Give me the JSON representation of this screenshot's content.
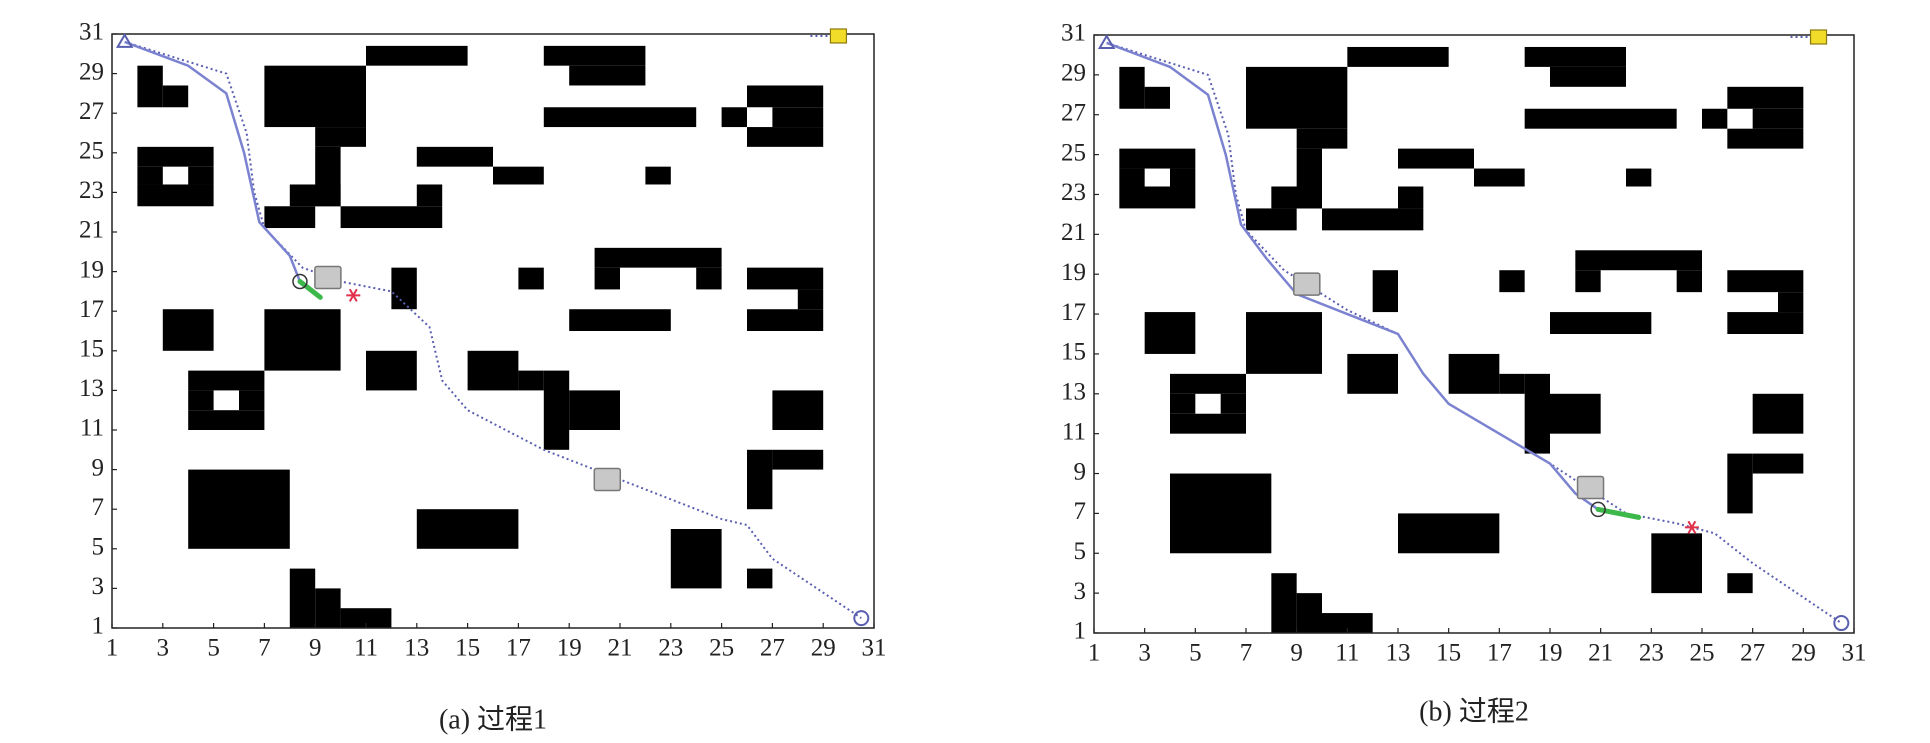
{
  "map": {
    "obstacles": [
      [
        11,
        29.4,
        15,
        30.4
      ],
      [
        18,
        29.4,
        22,
        30.4
      ],
      [
        19,
        28.4,
        22,
        29.4
      ],
      [
        2,
        27.3,
        3,
        29.4
      ],
      [
        3,
        27.3,
        4,
        28.4
      ],
      [
        7,
        26.3,
        11,
        29.4
      ],
      [
        9,
        25.3,
        11,
        26.3
      ],
      [
        9,
        22.3,
        10,
        25.3
      ],
      [
        8,
        22.3,
        10,
        23.4
      ],
      [
        7,
        21.2,
        9,
        22.3
      ],
      [
        10,
        21.2,
        14,
        22.3
      ],
      [
        13,
        22.3,
        14,
        23.4
      ],
      [
        13,
        24.3,
        16,
        25.3
      ],
      [
        16,
        23.4,
        18,
        24.3
      ],
      [
        18,
        26.3,
        24,
        27.3
      ],
      [
        22,
        23.4,
        23,
        24.3
      ],
      [
        26,
        27.3,
        29,
        28.4
      ],
      [
        26,
        25.3,
        29,
        26.3
      ],
      [
        27,
        26.3,
        29,
        27.3
      ],
      [
        25,
        26.3,
        26,
        27.3
      ],
      [
        2,
        24.3,
        5,
        25.3
      ],
      [
        2,
        22.3,
        5,
        23.4
      ],
      [
        2,
        23.4,
        3,
        24.3
      ],
      [
        4,
        23.4,
        5,
        24.3
      ],
      [
        12,
        17.1,
        13,
        19.2
      ],
      [
        17,
        18.1,
        18,
        19.2
      ],
      [
        20,
        19.2,
        25,
        20.2
      ],
      [
        20,
        18.1,
        21,
        19.2
      ],
      [
        24,
        18.1,
        25,
        19.2
      ],
      [
        19,
        16,
        23,
        17.1
      ],
      [
        26,
        18.1,
        29,
        19.2
      ],
      [
        28,
        17.1,
        29,
        18.1
      ],
      [
        26,
        16,
        29,
        17.1
      ],
      [
        3,
        15,
        5,
        17.1
      ],
      [
        7,
        14,
        10,
        17.1
      ],
      [
        4,
        13,
        7,
        14
      ],
      [
        4,
        11,
        7,
        12
      ],
      [
        4,
        12,
        5,
        13
      ],
      [
        6,
        12,
        7,
        13
      ],
      [
        11,
        13,
        13,
        15
      ],
      [
        15,
        13,
        17,
        15
      ],
      [
        17,
        13,
        18,
        14
      ],
      [
        18,
        10,
        19,
        14
      ],
      [
        19,
        11,
        21,
        13
      ],
      [
        27,
        11,
        29,
        13
      ],
      [
        26,
        7,
        27,
        10
      ],
      [
        27,
        9,
        29,
        10
      ],
      [
        4,
        5,
        8,
        9
      ],
      [
        13,
        5,
        17,
        7
      ],
      [
        23,
        3,
        25,
        6
      ],
      [
        26,
        3,
        27,
        4
      ],
      [
        8,
        1,
        9,
        4
      ],
      [
        9,
        1,
        10,
        3
      ],
      [
        10,
        1,
        12,
        2
      ]
    ]
  },
  "chart_data": [
    {
      "type": "path-map",
      "caption": "(a) 过程1",
      "xlim": [
        1,
        31
      ],
      "ylim": [
        1,
        31
      ],
      "xticks": [
        1,
        3,
        5,
        7,
        9,
        11,
        13,
        15,
        17,
        19,
        21,
        23,
        25,
        27,
        29,
        31
      ],
      "yticks": [
        1,
        3,
        5,
        7,
        9,
        11,
        13,
        15,
        17,
        19,
        21,
        23,
        25,
        27,
        29,
        31
      ],
      "reference_path": {
        "x": [
          1.5,
          4,
          5.5,
          6.3,
          6.6,
          7,
          8.5,
          10,
          12,
          13.5,
          14,
          15,
          18,
          20,
          23,
          25,
          26,
          27,
          30.5
        ],
        "y": [
          30.6,
          29.6,
          29,
          26,
          23,
          21.2,
          19.2,
          18.5,
          18,
          16.2,
          13.5,
          12,
          10,
          9,
          7.5,
          6.5,
          6.2,
          4.5,
          1.5
        ]
      },
      "traveled_path": {
        "x": [
          1.5,
          4,
          5.5,
          6.2,
          6.8,
          8,
          8.4
        ],
        "y": [
          30.6,
          29.4,
          28,
          25,
          21.5,
          19.8,
          18.5
        ]
      },
      "robot": [
        8.4,
        18.5
      ],
      "heading": [
        9.2,
        17.7
      ],
      "target": [
        10.5,
        17.8
      ],
      "moving_obstacles": {
        "x": [
          9.5,
          20.5
        ],
        "y": [
          18.7,
          8.5
        ]
      },
      "start": [
        1.5,
        30.6
      ],
      "goal": [
        30.5,
        1.5
      ],
      "goal_marker": [
        29.6,
        30.9
      ]
    },
    {
      "type": "path-map",
      "caption": "(b) 过程2",
      "xlim": [
        1,
        31
      ],
      "ylim": [
        1,
        31
      ],
      "xticks": [
        1,
        3,
        5,
        7,
        9,
        11,
        13,
        15,
        17,
        19,
        21,
        23,
        25,
        27,
        29,
        31
      ],
      "yticks": [
        1,
        3,
        5,
        7,
        9,
        11,
        13,
        15,
        17,
        19,
        21,
        23,
        25,
        27,
        29,
        31
      ],
      "reference_path": {
        "x": [
          1.5,
          4,
          5.5,
          6.3,
          6.6,
          7,
          8.5,
          11,
          13,
          14,
          15,
          17,
          19,
          22,
          24,
          25.5,
          27,
          30.5
        ],
        "y": [
          30.6,
          29.6,
          29,
          26,
          23,
          21.2,
          19.2,
          17.2,
          16,
          14,
          12.5,
          11,
          9.5,
          7,
          6.5,
          6,
          4.5,
          1.5
        ]
      },
      "traveled_path": {
        "x": [
          1.5,
          4,
          5.5,
          6.2,
          6.8,
          7.8,
          9,
          11,
          13,
          14,
          15,
          17,
          19,
          20,
          20.9
        ],
        "y": [
          30.6,
          29.4,
          28,
          25,
          21.5,
          19.8,
          18,
          17,
          16,
          14,
          12.5,
          11,
          9.5,
          8,
          7.2
        ]
      },
      "robot": [
        20.9,
        7.2
      ],
      "heading": [
        22.5,
        6.8
      ],
      "target": [
        24.6,
        6.3
      ],
      "moving_obstacles": {
        "x": [
          9.4,
          20.6
        ],
        "y": [
          18.5,
          8.3
        ]
      },
      "start": [
        1.5,
        30.6
      ],
      "goal": [
        30.5,
        1.5
      ],
      "goal_marker": [
        29.6,
        30.9
      ]
    }
  ]
}
